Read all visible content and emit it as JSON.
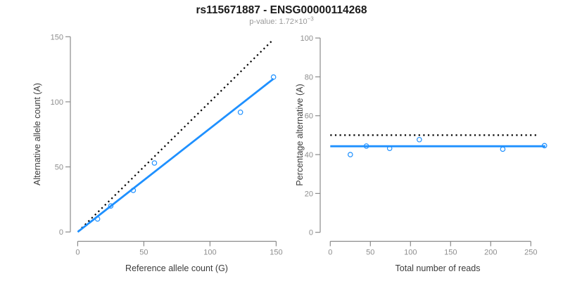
{
  "title": "rs115671887 - ENSG00000114268",
  "subtitle": {
    "base": "p-value: 1.72×10",
    "exponent": "−3"
  },
  "chart_style": {
    "accent_blue": "#1E90FF",
    "reference_black": "#000000",
    "axis_gray": "#8b8b8b",
    "tick_label_gray": "#8e8e8e",
    "axis_title_dark": "#3c3c3c",
    "title_color": "#1a1a1a",
    "subtitle_color": "#9a9a9a",
    "background": "#ffffff"
  },
  "chart_data": [
    {
      "type": "scatter",
      "panel": "left",
      "xlabel": "Reference allele count (G)",
      "ylabel": "Alternative allele count (A)",
      "xlim": [
        0,
        150
      ],
      "ylim": [
        0,
        150
      ],
      "xticks": [
        0,
        50,
        100,
        150
      ],
      "yticks": [
        0,
        50,
        100,
        150
      ],
      "grid": false,
      "legend": "none",
      "points": [
        [
          15,
          10
        ],
        [
          25,
          20
        ],
        [
          42,
          32
        ],
        [
          58,
          53
        ],
        [
          123,
          92
        ],
        [
          148,
          119
        ]
      ],
      "fit_line": {
        "name": "fitted-allelic-ratio-line",
        "style": "solid",
        "x1": 0,
        "y1": 0,
        "x2": 148,
        "y2": 117.7
      },
      "reference_line": {
        "name": "identity-line-y-equals-x",
        "style": "dotted",
        "x1": 0.5,
        "y1": 0.5,
        "x2": 148,
        "y2": 148
      }
    },
    {
      "type": "scatter",
      "panel": "right",
      "xlabel": "Total number of reads",
      "ylabel": "Percentage alternative (A)",
      "xlim": [
        0,
        268
      ],
      "ylim": [
        0,
        100
      ],
      "xticks": [
        0,
        50,
        100,
        150,
        200,
        250
      ],
      "yticks": [
        0,
        20,
        40,
        60,
        80,
        100
      ],
      "grid": false,
      "legend": "none",
      "points": [
        [
          25,
          40.0
        ],
        [
          45,
          44.4
        ],
        [
          74,
          43.2
        ],
        [
          111,
          47.7
        ],
        [
          215,
          42.8
        ],
        [
          267,
          44.6
        ]
      ],
      "fit_line": {
        "name": "mean-percentage-line",
        "style": "solid",
        "x1": 0,
        "y1": 44.3,
        "x2": 268,
        "y2": 44.3
      },
      "reference_line": {
        "name": "fifty-percent-line",
        "style": "dotted",
        "x1": 0,
        "y1": 50,
        "x2": 260,
        "y2": 50
      }
    }
  ]
}
